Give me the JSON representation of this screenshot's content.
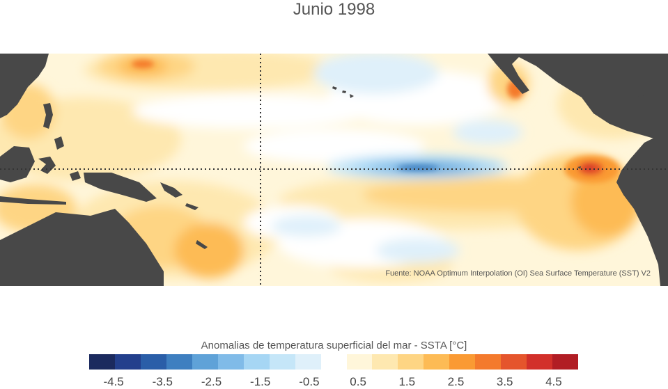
{
  "title": "Junio 1998",
  "source": "Fuente: NOAA Optimum Interpolation (OI) Sea Surface Temperature (SST) V2",
  "colorbar": {
    "label": "Anomalias de temperatura superficial del mar - SSTA  [°C]",
    "colors": [
      "#1b2a5e",
      "#233f8c",
      "#2a5ea8",
      "#3e7fc0",
      "#5fa2d8",
      "#80bbe8",
      "#a6d6f4",
      "#c5e6f8",
      "#dff0fa",
      "#ffffff",
      "#fff6da",
      "#fee8b0",
      "#fed584",
      "#fdbb55",
      "#fa9a33",
      "#f47a2c",
      "#e5552c",
      "#d2302a",
      "#b11d24"
    ],
    "ticks": [
      "-4.5",
      "-3.5",
      "-2.5",
      "-1.5",
      "-0.5",
      "0.5",
      "1.5",
      "2.5",
      "3.5",
      "4.5"
    ],
    "range": [
      -5,
      5
    ]
  },
  "map": {
    "land_color": "#484848",
    "equator_line": "dotted",
    "meridian_line": "dotted"
  }
}
